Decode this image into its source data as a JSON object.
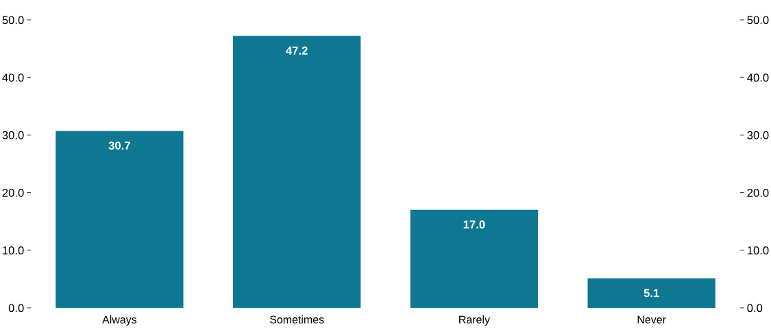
{
  "chart_data": {
    "type": "bar",
    "categories": [
      "Always",
      "Sometimes",
      "Rarely",
      "Never"
    ],
    "values": [
      30.7,
      47.2,
      17.0,
      5.1
    ],
    "value_labels": [
      "30.7",
      "47.2",
      "17.0",
      "5.1"
    ],
    "color": "#0e7892",
    "ylim": [
      0,
      50
    ],
    "yticks": [
      {
        "value": 0,
        "label": "0.0"
      },
      {
        "value": 10,
        "label": "10.0"
      },
      {
        "value": 20,
        "label": "20.0"
      },
      {
        "value": 30,
        "label": "30.0"
      },
      {
        "value": 40,
        "label": "40.0"
      },
      {
        "value": 50,
        "label": "50.0"
      }
    ],
    "y2lim": [
      0,
      50
    ],
    "y2ticks": [
      {
        "value": 0,
        "label": "0.0"
      },
      {
        "value": 10,
        "label": "10.0"
      },
      {
        "value": 20,
        "label": "20.0"
      },
      {
        "value": 30,
        "label": "30.0"
      },
      {
        "value": 40,
        "label": "40.0"
      },
      {
        "value": 50,
        "label": "50.0"
      }
    ],
    "grid": false,
    "legend": false
  }
}
